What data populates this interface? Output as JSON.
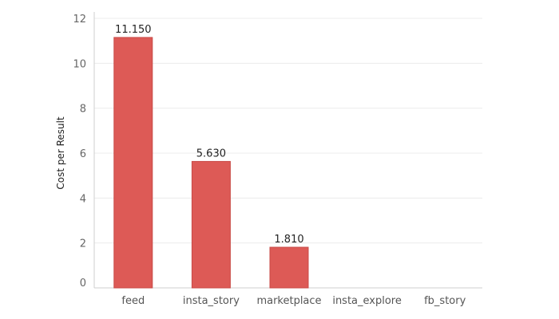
{
  "chart_data": {
    "type": "bar",
    "title": "",
    "xlabel": "",
    "ylabel": "Cost per Result",
    "categories": [
      "feed",
      "insta_story",
      "marketplace",
      "insta_explore",
      "fb_story"
    ],
    "values": [
      11.15,
      5.63,
      1.81,
      null,
      null
    ],
    "data_labels": [
      "11.150",
      "5.630",
      "1.810",
      "",
      ""
    ],
    "ylim": [
      0,
      12
    ],
    "yticks": [
      0,
      2,
      4,
      6,
      8,
      10,
      12
    ],
    "grid": true,
    "legend": "none",
    "colors": {
      "bar": "#dd5a56",
      "bar_edge": "#c94a46",
      "grid": "#ececec",
      "axis": "#cfcfcf"
    }
  }
}
